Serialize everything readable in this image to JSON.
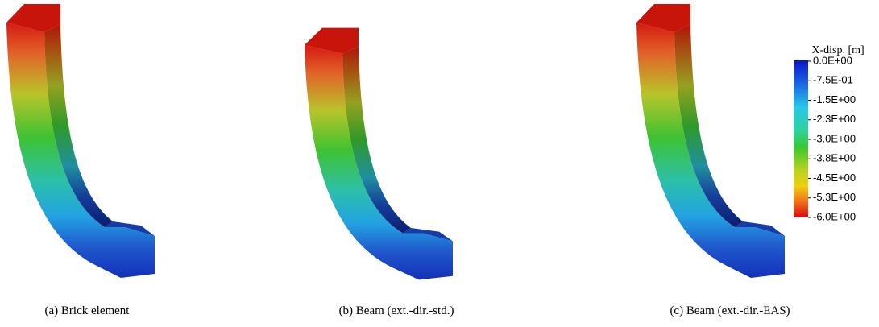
{
  "captions": [
    "(a) Brick element",
    "(b) Beam (ext.-dir.-std.)",
    "(c) Beam (ext.-dir.-EAS)"
  ],
  "colorbar": {
    "title": "X-disp. [m]",
    "labels": [
      "0.0E+00",
      "-7.5E-01",
      "-1.5E+00",
      "-2.3E+00",
      "-3.0E+00",
      "-3.8E+00",
      "-4.5E+00",
      "-5.3E+00",
      "-6.0E+00"
    ]
  }
}
